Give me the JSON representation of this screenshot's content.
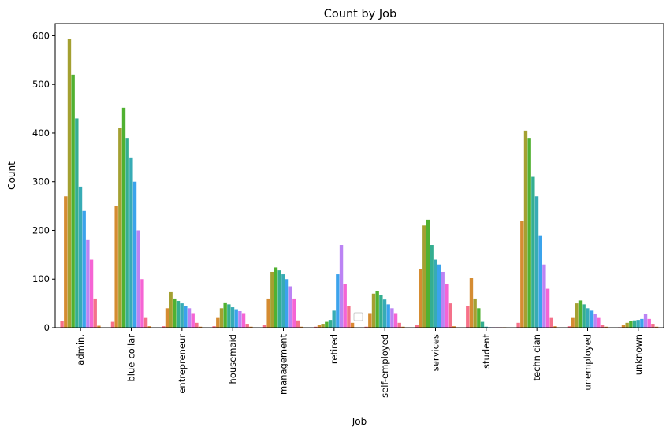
{
  "chart_data": {
    "type": "bar",
    "title": "Count by Job",
    "xlabel": "Job",
    "ylabel": "Count",
    "ylim": [
      0,
      625
    ],
    "yticks": [
      0,
      100,
      200,
      300,
      400,
      500,
      600
    ],
    "categories": [
      "admin.",
      "blue-collar",
      "entrepreneur",
      "housemaid",
      "management",
      "retired",
      "self-employed",
      "services",
      "student",
      "technician",
      "unemployed",
      "unknown"
    ],
    "grouped_by_hue": true,
    "hue_palette": "husl",
    "legend": {
      "position": "lower center",
      "entries": []
    },
    "values_per_category": [
      [
        14,
        270,
        594,
        520,
        430,
        290,
        240,
        180,
        140,
        60,
        4
      ],
      [
        12,
        250,
        410,
        452,
        390,
        350,
        300,
        200,
        100,
        20,
        3
      ],
      [
        3,
        40,
        73,
        60,
        55,
        50,
        45,
        40,
        30,
        10,
        2
      ],
      [
        3,
        20,
        40,
        52,
        48,
        42,
        38,
        34,
        30,
        8,
        2
      ],
      [
        5,
        60,
        115,
        124,
        118,
        110,
        100,
        85,
        60,
        15,
        2
      ],
      [
        2,
        5,
        8,
        12,
        16,
        35,
        110,
        170,
        90,
        44,
        10
      ],
      [
        2,
        30,
        70,
        75,
        68,
        58,
        48,
        40,
        30,
        10,
        2
      ],
      [
        6,
        120,
        210,
        222,
        170,
        140,
        130,
        115,
        90,
        50,
        3
      ],
      [
        45,
        102,
        60,
        40,
        12,
        2,
        1,
        1,
        1,
        1,
        1
      ],
      [
        10,
        220,
        405,
        390,
        310,
        270,
        190,
        130,
        80,
        20,
        3
      ],
      [
        3,
        20,
        50,
        56,
        48,
        40,
        35,
        28,
        20,
        6,
        2
      ],
      [
        1,
        5,
        10,
        14,
        15,
        16,
        18,
        28,
        18,
        8,
        2
      ]
    ],
    "series_colors": [
      "#f77189",
      "#d58c32",
      "#a4a031",
      "#50b131",
      "#34ae91",
      "#37abb5",
      "#3ba3ec",
      "#bb83f4",
      "#f564d4",
      "#f4718a",
      "#dc8932"
    ]
  }
}
